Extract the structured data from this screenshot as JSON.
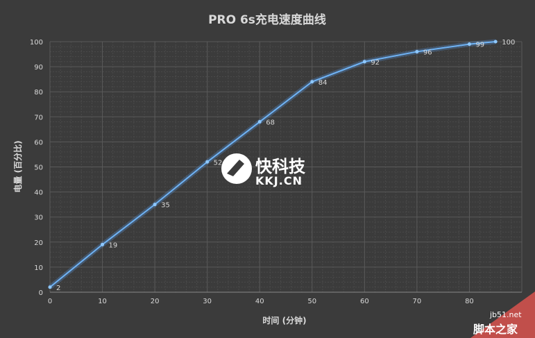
{
  "chart_data": {
    "type": "line",
    "title": "PRO 6s充电速度曲线",
    "xlabel": "时间 (分钟)",
    "ylabel": "电量 (百分比)",
    "xlim": [
      0,
      90
    ],
    "ylim": [
      0,
      100
    ],
    "x_ticks": [
      "0",
      "10",
      "20",
      "30",
      "40",
      "50",
      "60",
      "70",
      "80"
    ],
    "y_ticks": [
      "0",
      "10",
      "20",
      "30",
      "40",
      "50",
      "60",
      "70",
      "80",
      "90",
      "100"
    ],
    "grid": true,
    "series": [
      {
        "x": [
          0,
          10,
          20,
          30,
          40,
          50,
          60,
          70,
          80,
          85
        ],
        "y": [
          2,
          19,
          35,
          52,
          68,
          84,
          92,
          96,
          99,
          100
        ],
        "labels": [
          "2",
          "19",
          "35",
          "52",
          "68",
          "84",
          "92",
          "96",
          "99",
          "100"
        ],
        "color": "#6fb3f5"
      }
    ]
  },
  "watermark": {
    "main": "快科技",
    "sub": "KKJ.CN"
  },
  "site_badge": {
    "domain": "jb51.net",
    "name": "脚本之家"
  }
}
